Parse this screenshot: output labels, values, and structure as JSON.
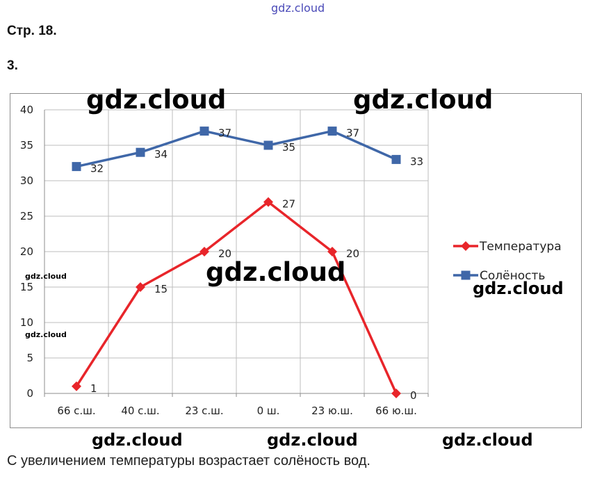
{
  "page": {
    "site_watermark": "gdz.cloud",
    "page_ref": "Стр. 18.",
    "task_number": "3.",
    "conclusion": "С увеличением температуры возрастает солёность вод."
  },
  "watermarks": [
    "gdz.cloud",
    "gdz.cloud",
    "gdz.cloud",
    "gdz.cloud",
    "gdz.cloud",
    "gdz.cloud",
    "gdz.cloud",
    "gdz.cloud",
    "gdz.cloud"
  ],
  "chart_data": {
    "type": "line",
    "categories": [
      "66 с.ш.",
      "40 с.ш.",
      "23 с.ш.",
      "0 ш.",
      "23 ю.ш.",
      "66 ю.ш."
    ],
    "ylim": [
      0,
      40
    ],
    "yticks": [
      0,
      5,
      10,
      15,
      20,
      25,
      30,
      35,
      40
    ],
    "grid": true,
    "legend": "right",
    "series": [
      {
        "name": "Температура",
        "values": [
          1,
          15,
          20,
          27,
          20,
          0
        ],
        "color": "#e8252a",
        "marker": "diamond"
      },
      {
        "name": "Солёность",
        "values": [
          32,
          34,
          37,
          35,
          37,
          33
        ],
        "color": "#3f67a8",
        "marker": "square"
      }
    ]
  }
}
